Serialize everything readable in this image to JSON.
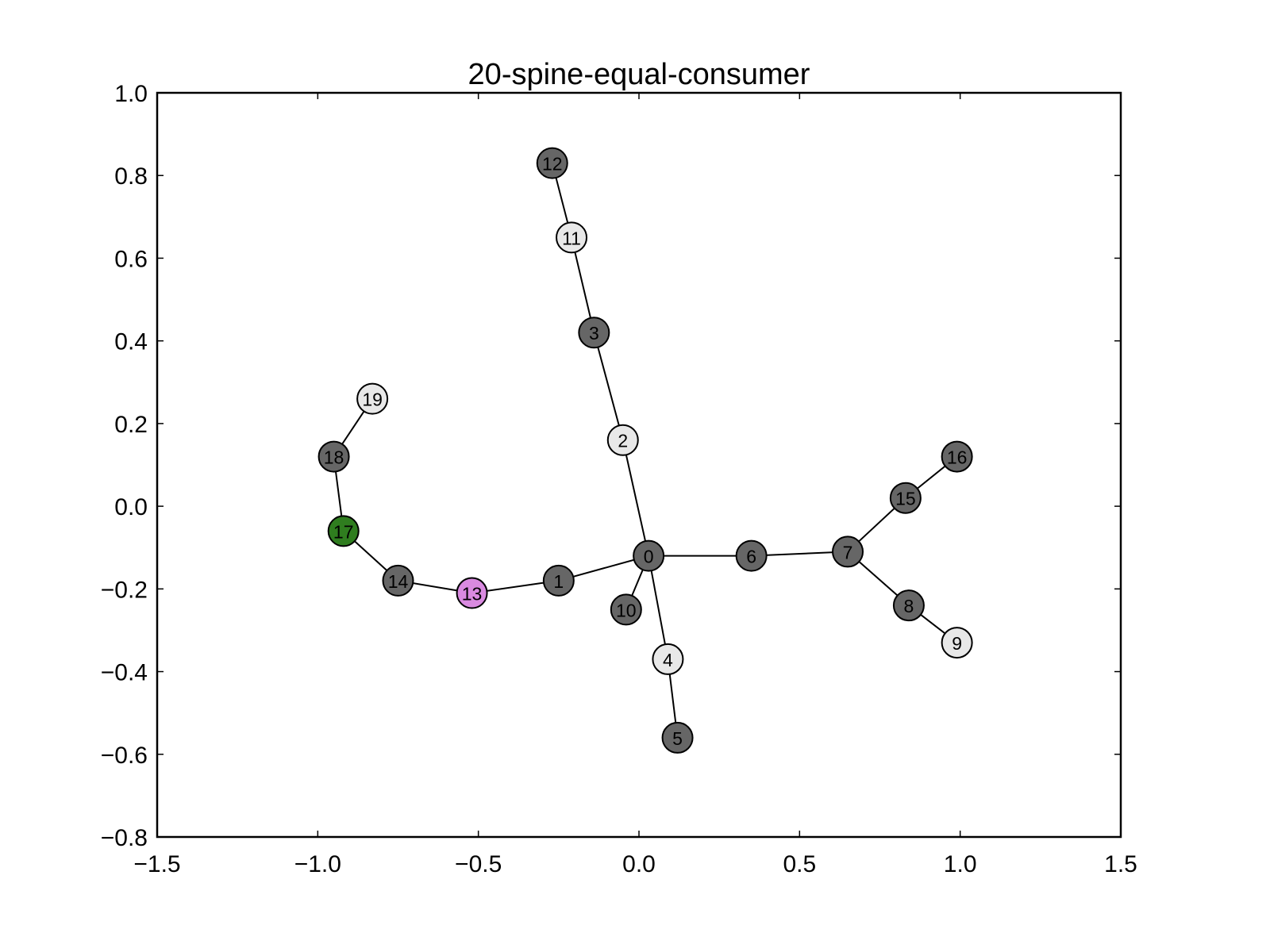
{
  "chart_data": {
    "type": "scatter",
    "title": "20-spine-equal-consumer",
    "xlabel": "",
    "ylabel": "",
    "xlim": [
      -1.5,
      1.5
    ],
    "ylim": [
      -0.8,
      1.0
    ],
    "grid": false,
    "xticks": [
      {
        "value": -1.5,
        "label": "−1.5"
      },
      {
        "value": -1.0,
        "label": "−1.0"
      },
      {
        "value": -0.5,
        "label": "−0.5"
      },
      {
        "value": 0.0,
        "label": "0.0"
      },
      {
        "value": 0.5,
        "label": "0.5"
      },
      {
        "value": 1.0,
        "label": "1.0"
      },
      {
        "value": 1.5,
        "label": "1.5"
      }
    ],
    "yticks": [
      {
        "value": -0.8,
        "label": "−0.8"
      },
      {
        "value": -0.6,
        "label": "−0.6"
      },
      {
        "value": -0.4,
        "label": "−0.4"
      },
      {
        "value": -0.2,
        "label": "−0.2"
      },
      {
        "value": 0.0,
        "label": "0.0"
      },
      {
        "value": 0.2,
        "label": "0.2"
      },
      {
        "value": 0.4,
        "label": "0.4"
      },
      {
        "value": 0.6,
        "label": "0.6"
      },
      {
        "value": 0.8,
        "label": "0.8"
      },
      {
        "value": 1.0,
        "label": "1.0"
      }
    ],
    "node_colors": {
      "dark": "#666666",
      "light": "#e8e8e8",
      "green": "#2f7d1f",
      "pink": "#d98ae0"
    },
    "nodes": [
      {
        "id": "0",
        "x": 0.03,
        "y": -0.12,
        "color": "dark"
      },
      {
        "id": "1",
        "x": -0.25,
        "y": -0.18,
        "color": "dark"
      },
      {
        "id": "2",
        "x": -0.05,
        "y": 0.16,
        "color": "light"
      },
      {
        "id": "3",
        "x": -0.14,
        "y": 0.42,
        "color": "dark"
      },
      {
        "id": "4",
        "x": 0.09,
        "y": -0.37,
        "color": "light"
      },
      {
        "id": "5",
        "x": 0.12,
        "y": -0.56,
        "color": "dark"
      },
      {
        "id": "6",
        "x": 0.35,
        "y": -0.12,
        "color": "dark"
      },
      {
        "id": "7",
        "x": 0.65,
        "y": -0.11,
        "color": "dark"
      },
      {
        "id": "8",
        "x": 0.84,
        "y": -0.24,
        "color": "dark"
      },
      {
        "id": "9",
        "x": 0.99,
        "y": -0.33,
        "color": "light"
      },
      {
        "id": "10",
        "x": -0.04,
        "y": -0.25,
        "color": "dark"
      },
      {
        "id": "11",
        "x": -0.21,
        "y": 0.65,
        "color": "light"
      },
      {
        "id": "12",
        "x": -0.27,
        "y": 0.83,
        "color": "dark"
      },
      {
        "id": "13",
        "x": -0.52,
        "y": -0.21,
        "color": "pink"
      },
      {
        "id": "14",
        "x": -0.75,
        "y": -0.18,
        "color": "dark"
      },
      {
        "id": "15",
        "x": 0.83,
        "y": 0.02,
        "color": "dark"
      },
      {
        "id": "16",
        "x": 0.99,
        "y": 0.12,
        "color": "dark"
      },
      {
        "id": "17",
        "x": -0.92,
        "y": -0.06,
        "color": "green"
      },
      {
        "id": "18",
        "x": -0.95,
        "y": 0.12,
        "color": "dark"
      },
      {
        "id": "19",
        "x": -0.83,
        "y": 0.26,
        "color": "light"
      }
    ],
    "edges": [
      [
        "0",
        "1"
      ],
      [
        "0",
        "2"
      ],
      [
        "2",
        "3"
      ],
      [
        "3",
        "11"
      ],
      [
        "11",
        "12"
      ],
      [
        "0",
        "4"
      ],
      [
        "4",
        "5"
      ],
      [
        "0",
        "10"
      ],
      [
        "0",
        "6"
      ],
      [
        "6",
        "7"
      ],
      [
        "7",
        "15"
      ],
      [
        "15",
        "16"
      ],
      [
        "7",
        "8"
      ],
      [
        "8",
        "9"
      ],
      [
        "1",
        "13"
      ],
      [
        "13",
        "14"
      ],
      [
        "14",
        "17"
      ],
      [
        "17",
        "18"
      ],
      [
        "18",
        "19"
      ]
    ]
  }
}
